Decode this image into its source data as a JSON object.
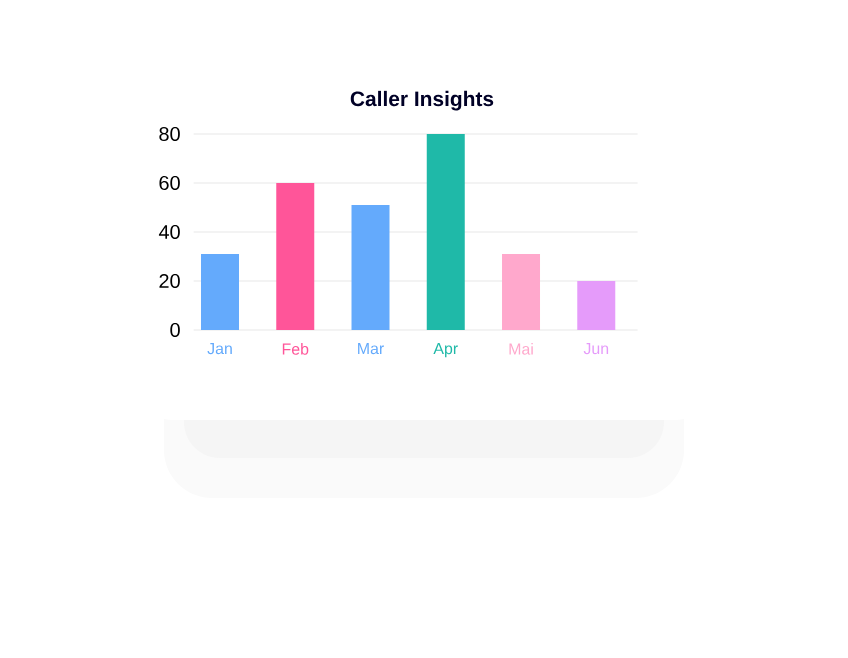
{
  "chart_data": {
    "type": "bar",
    "title": "Caller Insights",
    "categories": [
      "Jan",
      "Feb",
      "Mar",
      "Apr",
      "Mai",
      "Jun"
    ],
    "values": [
      31,
      60,
      51,
      80,
      31,
      20
    ],
    "colors": [
      "#64aafc",
      "#ff5599",
      "#64aafc",
      "#1fb9a8",
      "#ffa8cc",
      "#e59bfa"
    ],
    "ylim": [
      0,
      80
    ],
    "yticks": [
      0,
      20,
      40,
      60,
      80
    ],
    "grid": "y"
  }
}
